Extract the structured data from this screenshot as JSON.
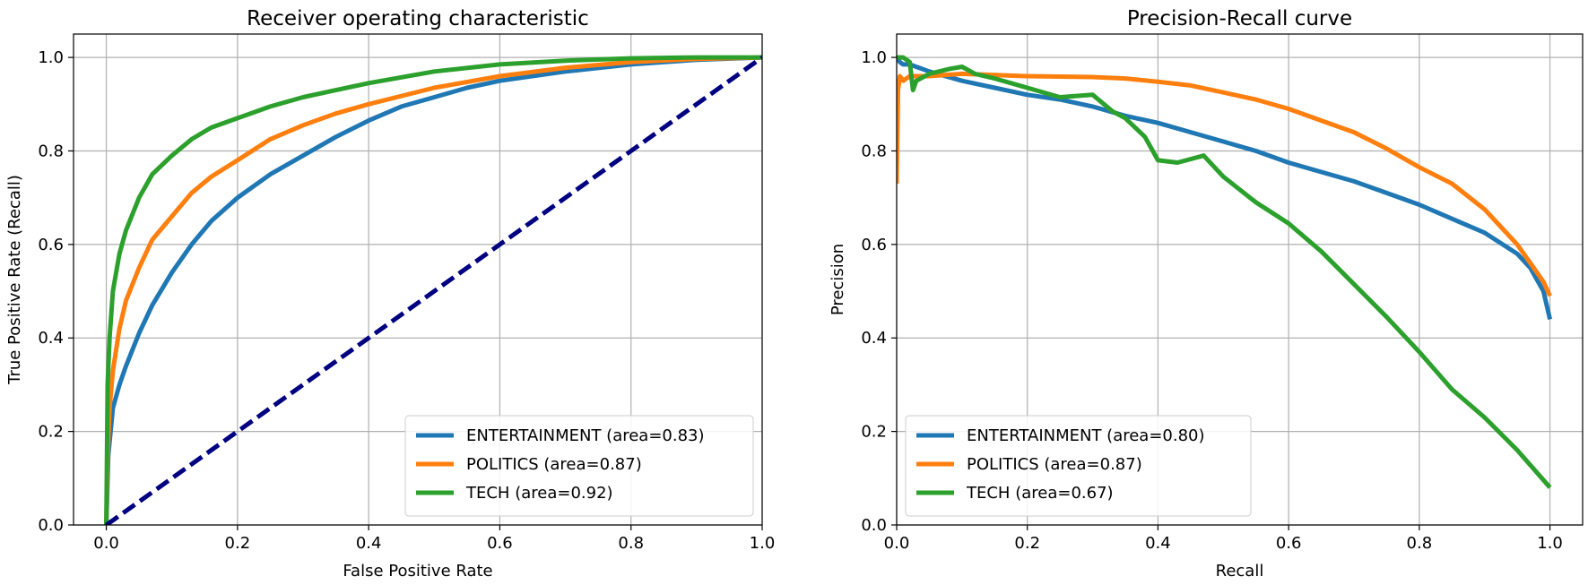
{
  "chart_data": [
    {
      "type": "line",
      "title": "Receiver operating characteristic",
      "xlabel": "False Positive Rate",
      "ylabel": "True Positive Rate (Recall)",
      "xlim": [
        -0.05,
        1.0
      ],
      "ylim": [
        0.0,
        1.05
      ],
      "xticks": [
        "0.0",
        "0.2",
        "0.4",
        "0.6",
        "0.8",
        "1.0"
      ],
      "yticks": [
        "0.0",
        "0.2",
        "0.4",
        "0.6",
        "0.8",
        "1.0"
      ],
      "grid": true,
      "legend_position": "lower-right",
      "series": [
        {
          "name": "ENTERTAINMENT (area=0.83)",
          "color": "#1f77b4",
          "x": [
            0,
            0.003,
            0.01,
            0.02,
            0.03,
            0.05,
            0.07,
            0.1,
            0.13,
            0.16,
            0.2,
            0.25,
            0.3,
            0.35,
            0.4,
            0.45,
            0.5,
            0.55,
            0.6,
            0.7,
            0.8,
            0.9,
            1.0
          ],
          "y": [
            0,
            0.15,
            0.25,
            0.3,
            0.34,
            0.41,
            0.47,
            0.54,
            0.6,
            0.65,
            0.7,
            0.75,
            0.79,
            0.83,
            0.865,
            0.895,
            0.915,
            0.935,
            0.95,
            0.97,
            0.985,
            0.995,
            1.0
          ]
        },
        {
          "name": "POLITICS (area=0.87)",
          "color": "#ff7f0e",
          "x": [
            0,
            0.002,
            0.005,
            0.01,
            0.02,
            0.03,
            0.05,
            0.07,
            0.1,
            0.13,
            0.16,
            0.2,
            0.25,
            0.3,
            0.35,
            0.4,
            0.5,
            0.6,
            0.7,
            0.8,
            0.9,
            1.0
          ],
          "y": [
            0,
            0.15,
            0.25,
            0.33,
            0.42,
            0.48,
            0.55,
            0.61,
            0.66,
            0.71,
            0.745,
            0.78,
            0.825,
            0.855,
            0.88,
            0.9,
            0.935,
            0.96,
            0.978,
            0.99,
            0.997,
            1.0
          ]
        },
        {
          "name": "TECH (area=0.92)",
          "color": "#2ca02c",
          "x": [
            0,
            0.002,
            0.005,
            0.01,
            0.02,
            0.03,
            0.05,
            0.07,
            0.1,
            0.13,
            0.16,
            0.2,
            0.25,
            0.3,
            0.35,
            0.4,
            0.5,
            0.6,
            0.7,
            0.8,
            0.9,
            1.0
          ],
          "y": [
            0,
            0.3,
            0.4,
            0.5,
            0.58,
            0.63,
            0.7,
            0.75,
            0.79,
            0.825,
            0.85,
            0.87,
            0.895,
            0.915,
            0.93,
            0.945,
            0.97,
            0.985,
            0.993,
            0.998,
            1.0,
            1.0
          ]
        },
        {
          "name": "",
          "color": "#000080",
          "dashed": true,
          "x": [
            0,
            1
          ],
          "y": [
            0,
            1
          ]
        }
      ]
    },
    {
      "type": "line",
      "title": "Precision-Recall curve",
      "xlabel": "Recall",
      "ylabel": "Precision",
      "xlim": [
        0.0,
        1.05
      ],
      "ylim": [
        0.0,
        1.05
      ],
      "xticks": [
        "0.0",
        "0.2",
        "0.4",
        "0.6",
        "0.8",
        "1.0"
      ],
      "yticks": [
        "0.0",
        "0.2",
        "0.4",
        "0.6",
        "0.8",
        "1.0"
      ],
      "grid": true,
      "legend_position": "lower-left",
      "series": [
        {
          "name": "ENTERTAINMENT (area=0.80)",
          "color": "#1f77b4",
          "x": [
            0,
            0.005,
            0.01,
            0.02,
            0.05,
            0.1,
            0.15,
            0.2,
            0.25,
            0.3,
            0.35,
            0.4,
            0.45,
            0.5,
            0.55,
            0.6,
            0.65,
            0.7,
            0.75,
            0.8,
            0.85,
            0.9,
            0.95,
            0.97,
            0.99,
            1.0
          ],
          "y": [
            1.0,
            0.99,
            0.985,
            0.985,
            0.97,
            0.95,
            0.935,
            0.92,
            0.91,
            0.895,
            0.875,
            0.86,
            0.84,
            0.82,
            0.8,
            0.775,
            0.755,
            0.735,
            0.71,
            0.685,
            0.655,
            0.625,
            0.58,
            0.55,
            0.5,
            0.44
          ]
        },
        {
          "name": "POLITICS (area=0.87)",
          "color": "#ff7f0e",
          "x": [
            0,
            0.002,
            0.005,
            0.01,
            0.02,
            0.05,
            0.1,
            0.2,
            0.3,
            0.35,
            0.4,
            0.45,
            0.5,
            0.55,
            0.6,
            0.65,
            0.7,
            0.75,
            0.8,
            0.85,
            0.9,
            0.95,
            0.97,
            0.99,
            1.0
          ],
          "y": [
            0.73,
            0.93,
            0.96,
            0.95,
            0.96,
            0.96,
            0.965,
            0.96,
            0.958,
            0.955,
            0.948,
            0.94,
            0.925,
            0.91,
            0.89,
            0.865,
            0.84,
            0.805,
            0.765,
            0.73,
            0.675,
            0.6,
            0.56,
            0.52,
            0.49
          ]
        },
        {
          "name": "TECH (area=0.67)",
          "color": "#2ca02c",
          "x": [
            0,
            0.01,
            0.02,
            0.025,
            0.03,
            0.05,
            0.08,
            0.1,
            0.12,
            0.15,
            0.2,
            0.25,
            0.3,
            0.33,
            0.35,
            0.38,
            0.4,
            0.43,
            0.47,
            0.5,
            0.55,
            0.6,
            0.65,
            0.7,
            0.75,
            0.8,
            0.85,
            0.9,
            0.95,
            1.0
          ],
          "y": [
            1.0,
            1.0,
            0.99,
            0.93,
            0.95,
            0.965,
            0.975,
            0.98,
            0.965,
            0.955,
            0.935,
            0.915,
            0.92,
            0.885,
            0.87,
            0.83,
            0.78,
            0.775,
            0.79,
            0.745,
            0.69,
            0.645,
            0.585,
            0.515,
            0.445,
            0.37,
            0.29,
            0.23,
            0.16,
            0.08
          ]
        }
      ]
    }
  ]
}
